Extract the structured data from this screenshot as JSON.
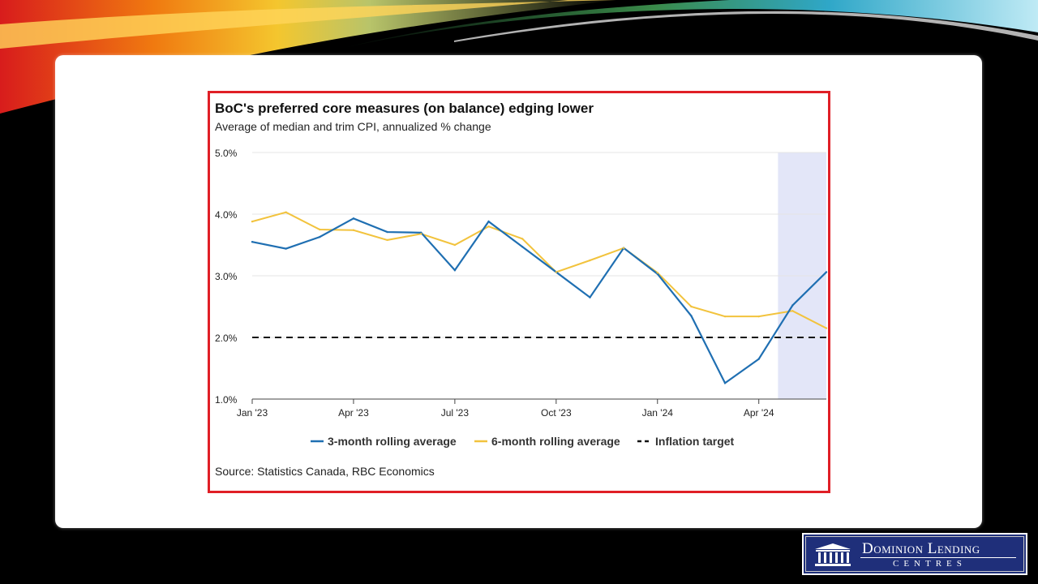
{
  "slide": {
    "source_note": "Source: Statistics Canada, RBC Economics"
  },
  "logo": {
    "title": "Dominion Lending",
    "subtitle": "CENTRES"
  },
  "colors": {
    "frame_border": "#e01f26",
    "series_3m": "#1f6fb2",
    "series_6m": "#f2c33d",
    "target": "#111111",
    "shade": "#e3e6f8"
  },
  "chart_data": {
    "type": "line",
    "title": "BoC's preferred core measures (on balance) edging lower",
    "subtitle": "Average of median and trim CPI, annualized % change",
    "xlabel": "",
    "ylabel": "",
    "ylim": [
      1.0,
      5.0
    ],
    "y_ticks": [
      "5.0%",
      "4.0%",
      "3.0%",
      "2.0%",
      "1.0%"
    ],
    "x_ticks": [
      "Jan '23",
      "Apr '23",
      "Jul '23",
      "Oct '23",
      "Jan '24",
      "Apr '24"
    ],
    "x": [
      "Jan '23",
      "Feb '23",
      "Mar '23",
      "Apr '23",
      "May '23",
      "Jun '23",
      "Jul '23",
      "Aug '23",
      "Sep '23",
      "Oct '23",
      "Nov '23",
      "Dec '23",
      "Jan '24",
      "Feb '24",
      "Mar '24",
      "Apr '24",
      "May '24",
      "Jun '24"
    ],
    "series": [
      {
        "name": "3-month rolling average",
        "values": [
          3.55,
          3.44,
          3.63,
          3.93,
          3.71,
          3.7,
          3.09,
          3.88,
          3.47,
          3.06,
          2.65,
          3.45,
          3.03,
          2.35,
          1.26,
          1.65,
          2.52,
          3.06
        ]
      },
      {
        "name": "6-month rolling average",
        "values": [
          3.88,
          4.03,
          3.75,
          3.74,
          3.58,
          3.68,
          3.5,
          3.8,
          3.6,
          3.06,
          3.25,
          3.45,
          3.05,
          2.5,
          2.34,
          2.34,
          2.43,
          2.15
        ]
      }
    ],
    "target": {
      "name": "Inflation target",
      "value": 2.0
    },
    "shaded_region": [
      "May '24",
      "Jun '24"
    ],
    "grid": true,
    "legend_position": "bottom"
  }
}
